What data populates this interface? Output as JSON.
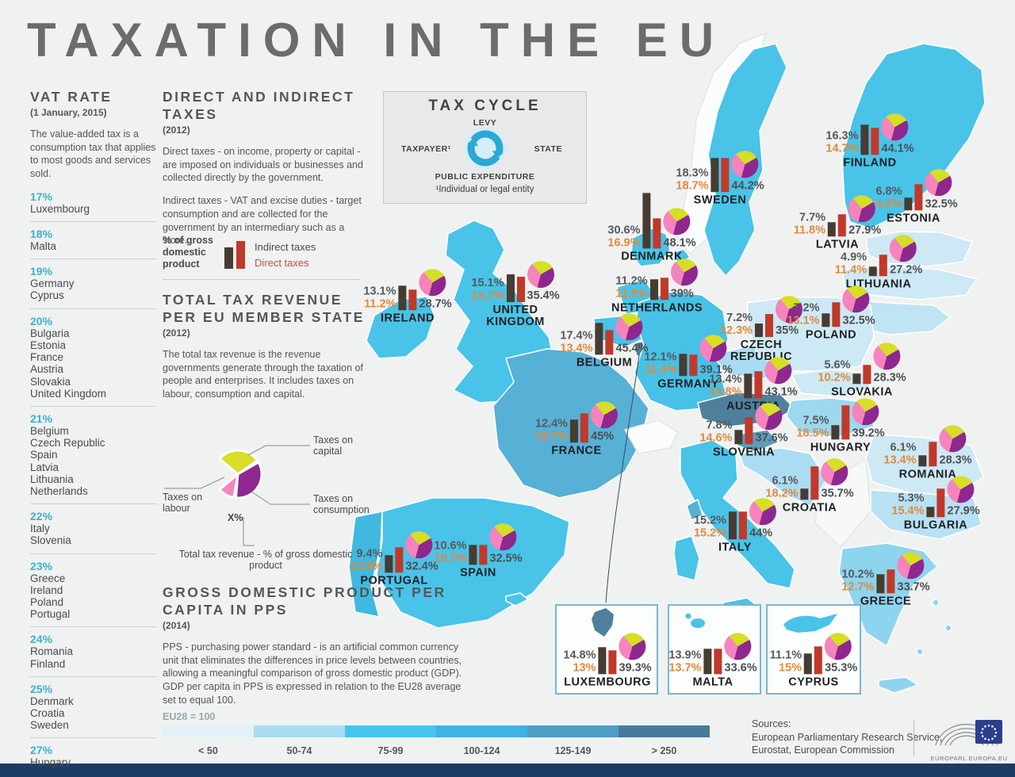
{
  "title": "TAXATION IN THE EU",
  "colors": {
    "teal": "#3eb1c8",
    "bar_indirect": "#463c32",
    "bar_direct": "#c0392b",
    "orange_text": "#df8a3e",
    "pie_labour": "#f584bd",
    "pie_capital": "#d6de26",
    "pie_consumption": "#8f2790"
  },
  "vat": {
    "heading": "VAT RATE",
    "date": "(1 January, 2015)",
    "desc": "The value-added tax is a consumption tax that applies to most goods and services sold.",
    "groups": [
      {
        "rate": "17%",
        "countries": [
          "Luxembourg"
        ]
      },
      {
        "rate": "18%",
        "countries": [
          "Malta"
        ]
      },
      {
        "rate": "19%",
        "countries": [
          "Germany",
          "Cyprus"
        ]
      },
      {
        "rate": "20%",
        "countries": [
          "Bulgaria",
          "Estonia",
          "France",
          "Austria",
          "Slovakia",
          "United Kingdom"
        ]
      },
      {
        "rate": "21%",
        "countries": [
          "Belgium",
          "Czech Republic",
          "Spain",
          "Latvia",
          "Lithuania",
          "Netherlands"
        ]
      },
      {
        "rate": "22%",
        "countries": [
          "Italy",
          "Slovenia"
        ]
      },
      {
        "rate": "23%",
        "countries": [
          "Greece",
          "Ireland",
          "Poland",
          "Portugal"
        ]
      },
      {
        "rate": "24%",
        "countries": [
          "Romania",
          "Finland"
        ]
      },
      {
        "rate": "25%",
        "countries": [
          "Denmark",
          "Croatia",
          "Sweden"
        ]
      },
      {
        "rate": "27%",
        "countries": [
          "Hungary"
        ]
      }
    ]
  },
  "direct_indirect": {
    "heading": "DIRECT AND INDIRECT TAXES",
    "year": "(2012)",
    "p1": "Direct taxes - on income, property or capital - are imposed on individuals or businesses and collected directly by the government.",
    "p2": "Indirect taxes - VAT and excise duties - target consumption and are collected for the government by an intermediary such as a store.",
    "legend_axis": "% of gross domestic product",
    "legend_indirect": "Indirect taxes",
    "legend_direct": "Direct taxes"
  },
  "total_tax": {
    "heading": "TOTAL TAX REVENUE PER EU MEMBER STATE",
    "year": "(2012)",
    "desc": "The total tax revenue is the revenue governments generate through the taxation of people and enterprises. It includes taxes on labour, consumption and capital.",
    "pie_capital": "Taxes on capital",
    "pie_labour": "Taxes on labour",
    "pie_consumption": "Taxes on consumption",
    "pie_x": "X%",
    "pie_caption": "Total tax revenue - % of gross domestic product"
  },
  "tax_cycle": {
    "heading": "TAX CYCLE",
    "levy": "LEVY",
    "taxpayer": "TAXPAYER¹",
    "state": "STATE",
    "expenditure": "PUBLIC EXPENDITURE",
    "footnote": "¹Individual or legal entity"
  },
  "gdp": {
    "heading": "GROSS DOMESTIC PRODUCT PER CAPITA IN PPS",
    "year": "(2014)",
    "desc": "PPS - purchasing power standard - is an artificial common currency unit that eliminates the differences in price levels between countries, allowing a meaningful comparison of gross domestic product (GDP).  GDP per capita in PPS is expressed in relation to the EU28 average set to equal 100.",
    "eu28": "EU28 = 100",
    "scale": [
      {
        "label": "< 50",
        "color": "#e3f2f9"
      },
      {
        "label": "50-74",
        "color": "#a9dcf2"
      },
      {
        "label": "75-99",
        "color": "#45c6ee"
      },
      {
        "label": "100-124",
        "color": "#3eb4e2"
      },
      {
        "label": "125-149",
        "color": "#4f9ec6"
      },
      {
        "label": "> 250",
        "color": "#49799b"
      }
    ]
  },
  "chart_data": {
    "type": "map",
    "note_units": "% of gross domestic product, 2012",
    "countries": [
      {
        "id": "finland",
        "name": "FINLAND",
        "indirect": "16.3%",
        "direct": "14.7%",
        "total": "44.1%"
      },
      {
        "id": "sweden",
        "name": "SWEDEN",
        "indirect": "18.3%",
        "direct": "18.7%",
        "total": "44.2%"
      },
      {
        "id": "estonia",
        "name": "ESTONIA",
        "indirect": "6.8%",
        "direct": "14.2%",
        "total": "32.5%"
      },
      {
        "id": "latvia",
        "name": "LATVIA",
        "indirect": "7.7%",
        "direct": "11.8%",
        "total": "27.9%"
      },
      {
        "id": "lithuania",
        "name": "LITHUANIA",
        "indirect": "4.9%",
        "direct": "11.4%",
        "total": "27.2%"
      },
      {
        "id": "denmark",
        "name": "DENMARK",
        "indirect": "30.6%",
        "direct": "16.9%",
        "total": "48.1%"
      },
      {
        "id": "ireland",
        "name": "IRELAND",
        "indirect": "13.1%",
        "direct": "11.2%",
        "total": "28.7%"
      },
      {
        "id": "uk",
        "name": "UNITED KINGDOM",
        "indirect": "15.1%",
        "direct": "13.7%",
        "total": "35.4%"
      },
      {
        "id": "netherlands",
        "name": "NETHERLANDS",
        "indirect": "11.2%",
        "direct": "11.9%",
        "total": "39%"
      },
      {
        "id": "belgium",
        "name": "BELGIUM",
        "indirect": "17.4%",
        "direct": "13.4%",
        "total": "45.4%"
      },
      {
        "id": "germany",
        "name": "GERMANY",
        "indirect": "12.1%",
        "direct": "11.4%",
        "total": "39.1%"
      },
      {
        "id": "czech",
        "name": "CZECH REPUBLIC",
        "indirect": "7.2%",
        "direct": "12.3%",
        "total": "35%"
      },
      {
        "id": "poland",
        "name": "POLAND",
        "indirect": "7.2%",
        "direct": "13.1%",
        "total": "32.5%"
      },
      {
        "id": "slovakia",
        "name": "SLOVAKIA",
        "indirect": "5.6%",
        "direct": "10.2%",
        "total": "28.3%"
      },
      {
        "id": "austria",
        "name": "AUSTRIA",
        "indirect": "13.4%",
        "direct": "14.8%",
        "total": "43.1%"
      },
      {
        "id": "slovenia",
        "name": "SLOVENIA",
        "indirect": "7.8%",
        "direct": "14.6%",
        "total": "37.6%"
      },
      {
        "id": "hungary",
        "name": "HUNGARY",
        "indirect": "7.5%",
        "direct": "18.5%",
        "total": "39.2%"
      },
      {
        "id": "romania",
        "name": "ROMANIA",
        "indirect": "6.1%",
        "direct": "13.4%",
        "total": "28.3%"
      },
      {
        "id": "france",
        "name": "FRANCE",
        "indirect": "12.4%",
        "direct": "15.7%",
        "total": "45%"
      },
      {
        "id": "croatia",
        "name": "CROATIA",
        "indirect": "6.1%",
        "direct": "18.2%",
        "total": "35.7%"
      },
      {
        "id": "italy",
        "name": "ITALY",
        "indirect": "15.2%",
        "direct": "15.2%",
        "total": "44%"
      },
      {
        "id": "bulgaria",
        "name": "BULGARIA",
        "indirect": "5.3%",
        "direct": "15.4%",
        "total": "27.9%"
      },
      {
        "id": "portugal",
        "name": "PORTUGAL",
        "indirect": "9.4%",
        "direct": "13.9%",
        "total": "32.4%"
      },
      {
        "id": "spain",
        "name": "SPAIN",
        "indirect": "10.6%",
        "direct": "10.7%",
        "total": "32.5%"
      },
      {
        "id": "greece",
        "name": "GREECE",
        "indirect": "10.2%",
        "direct": "12.7%",
        "total": "33.7%"
      },
      {
        "id": "luxembourg",
        "name": "LUXEMBOURG",
        "indirect": "14.8%",
        "direct": "13%",
        "total": "39.3%"
      },
      {
        "id": "malta",
        "name": "MALTA",
        "indirect": "13.9%",
        "direct": "13.7%",
        "total": "33.6%"
      },
      {
        "id": "cyprus",
        "name": "CYPRUS",
        "indirect": "11.1%",
        "direct": "15%",
        "total": "35.3%"
      }
    ]
  },
  "sources": {
    "label": "Sources:",
    "line1": "European Parliamentary Research Service,",
    "line2": "Eurostat, European Commission",
    "logo_text": "EUROPARL.EUROPA.EU"
  }
}
